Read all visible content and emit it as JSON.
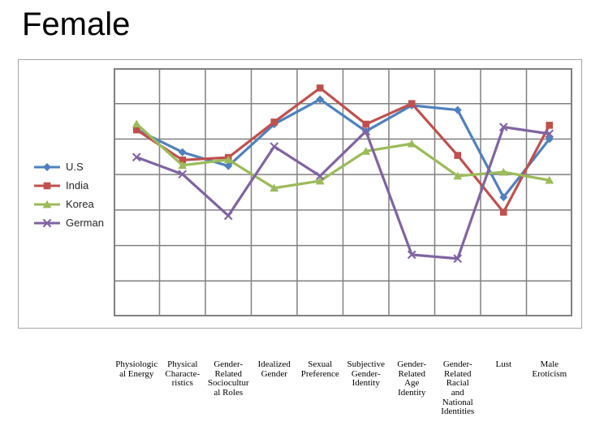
{
  "slide": {
    "title": "Female"
  },
  "chart_data": {
    "type": "line",
    "title": "",
    "xlabel": "",
    "ylabel": "",
    "categories": [
      "Physiologic\nal Energy",
      "Physical\nCharacte-\nristics",
      "Gender-\nRelated\nSociocultur\nal Roles",
      "Idealized\nGender",
      "Sexual\nPreference",
      "Subjective\nGender-\nIdentity",
      "Gender-\nRelated\nAge\nIdentity",
      "Gender-\nRelated\nRacial\nand\nNational\nIdentities",
      "Lust",
      "Male\nEroticism"
    ],
    "series": [
      {
        "name": "U.S",
        "color": "#4F81BD",
        "marker": "diamond",
        "values": [
          5.27,
          4.63,
          4.24,
          5.42,
          6.12,
          5.22,
          5.95,
          5.82,
          3.36,
          5.0
        ]
      },
      {
        "name": "India",
        "color": "#C0504D",
        "marker": "square",
        "values": [
          5.26,
          4.41,
          4.48,
          5.48,
          6.44,
          5.42,
          6.0,
          4.54,
          2.94,
          5.39
        ]
      },
      {
        "name": "Korea",
        "color": "#9BBB59",
        "marker": "triangle",
        "values": [
          5.43,
          4.26,
          4.42,
          3.62,
          3.82,
          4.66,
          4.87,
          3.96,
          4.07,
          3.84
        ]
      },
      {
        "name": "German",
        "color": "#8064A2",
        "marker": "x",
        "values": [
          4.49,
          4.01,
          2.84,
          4.79,
          3.96,
          5.22,
          1.74,
          1.63,
          5.34,
          5.15
        ]
      }
    ],
    "ylim": [
      0,
      7
    ],
    "y_tick_labels_visible": false,
    "grid": {
      "rows": 7,
      "cols": 10,
      "on": true,
      "line_color": "#808080"
    },
    "legend_position": "middle-left",
    "frame_border_color": "#A6A6A6",
    "plot_background": "#FFFFFF"
  }
}
